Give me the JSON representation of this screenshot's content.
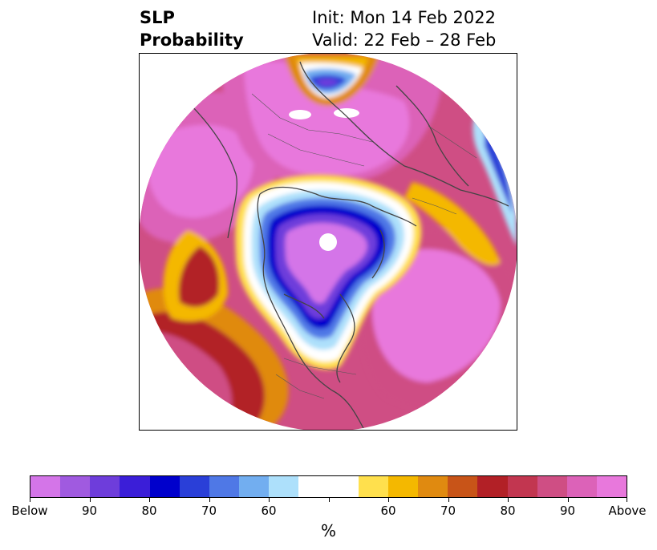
{
  "title": {
    "left_line1": "SLP",
    "left_line2": "Probability",
    "right_line1": "Init: Mon 14 Feb 2022",
    "right_line2": "Valid: 22 Feb – 28 Feb"
  },
  "colorbar": {
    "colors": [
      "#d475e8",
      "#a05ae0",
      "#6e3ddb",
      "#3b1ed8",
      "#0000cc",
      "#2a3fd8",
      "#4f78e6",
      "#72aef0",
      "#ade0fb",
      "#ffffff",
      "#ffffff",
      "#ffe04d",
      "#f4b800",
      "#e08a10",
      "#c85418",
      "#b22026",
      "#c23650",
      "#cf4e84",
      "#dc62b8",
      "#e878dc"
    ],
    "tick_labels": [
      "Below",
      "90",
      "80",
      "70",
      "60",
      "",
      "60",
      "70",
      "80",
      "90",
      "Above"
    ],
    "unit_label": "%"
  }
}
